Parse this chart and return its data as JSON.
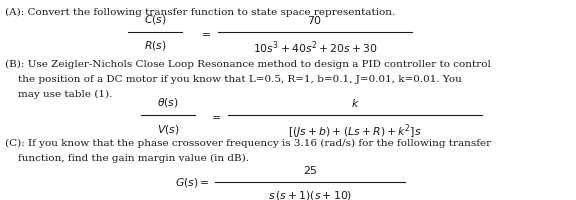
{
  "text_color": "#1a1a1a",
  "title_A": "(A): Convert the following transfer function to state space representation.",
  "text_B_line1": "(B): Use Zeigler-Nichols Close Loop Resonance method to design a PID controller to control",
  "text_B_line2": "    the position of a DC motor if you know that L=0.5, R=1, b=0.1, J=0.01, k=0.01. You",
  "text_B_line3": "    may use table (1).",
  "text_C_line1": "(C): If you know that the phase crossover frequency is 3.16 (rad/s) for the following transfer",
  "text_C_line2": "    function, find the gain margin value (in dB).",
  "frac_A_num": "$70$",
  "frac_A_den": "$10s^3 + 40s^2 + 20s + 30$",
  "frac_A_lhs_num": "$C(s)$",
  "frac_A_lhs_den": "$R(s)$",
  "frac_B_num": "$k$",
  "frac_B_den": "$[(Js + b) + (Ls + R) + k^2]s$",
  "frac_B_lhs_num": "$\\theta(s)$",
  "frac_B_lhs_den": "$V(s)$",
  "frac_C_num": "$25$",
  "frac_C_den": "$s\\,(s + 1)(s + 10)$",
  "frac_C_lhs": "$G(s) =$",
  "fs_body": 7.5,
  "fs_math": 7.8,
  "fig_w": 5.76,
  "fig_h": 2.01,
  "dpi": 100
}
